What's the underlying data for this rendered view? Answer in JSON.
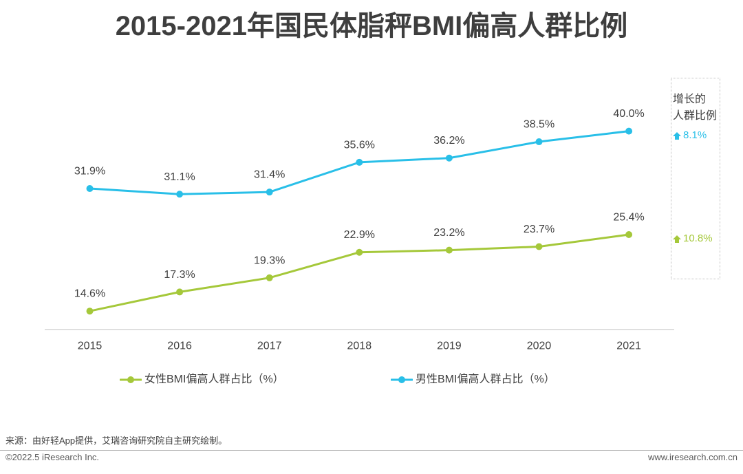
{
  "chart_data": {
    "type": "line",
    "title": "2015-2021年国民体脂秤BMI偏高人群比例",
    "categories": [
      "2015",
      "2016",
      "2017",
      "2018",
      "2019",
      "2020",
      "2021"
    ],
    "series": [
      {
        "name": "女性BMI偏高人群占比（%）",
        "color": "#A5C83A",
        "values": [
          14.6,
          17.3,
          19.3,
          22.9,
          23.2,
          23.7,
          25.4
        ],
        "data_labels": [
          "14.6%",
          "17.3%",
          "19.3%",
          "22.9%",
          "23.2%",
          "23.7%",
          "25.4%"
        ]
      },
      {
        "name": "男性BMI偏高人群占比（%）",
        "color": "#29BFE8",
        "values": [
          31.9,
          31.1,
          31.4,
          35.6,
          36.2,
          38.5,
          40.0
        ],
        "data_labels": [
          "31.9%",
          "31.1%",
          "31.4%",
          "35.6%",
          "36.2%",
          "38.5%",
          "40.0%"
        ]
      }
    ],
    "ylim": [
      12,
      42
    ],
    "grid": false,
    "legend": "bottom"
  },
  "growth_panel": {
    "heading": [
      "增长的",
      "人群比例"
    ],
    "items": [
      {
        "value": "8.1%",
        "color": "#29BFE8",
        "icon": "up-arrow-icon"
      },
      {
        "value": "10.8%",
        "color": "#A5C83A",
        "icon": "up-arrow-icon"
      }
    ]
  },
  "footer": {
    "source": "来源：由好轻App提供，艾瑞咨询研究院自主研究绘制。",
    "copyright": "©2022.5 iResearch Inc.",
    "website": "www.iresearch.com.cn"
  }
}
